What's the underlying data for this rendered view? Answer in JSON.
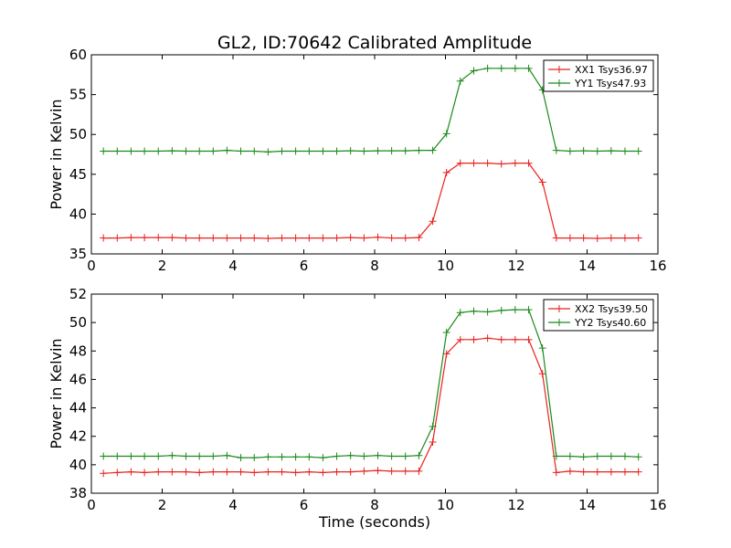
{
  "title": "GL2, ID:70642 Calibrated Amplitude",
  "xlabel": "Time (seconds)",
  "chart_data": [
    {
      "type": "line",
      "title": "GL2, ID:70642 Calibrated Amplitude",
      "xlabel": "",
      "ylabel": "Power in Kelvin",
      "xlim": [
        0,
        16
      ],
      "ylim": [
        35,
        60
      ],
      "xticks": [
        0,
        2,
        4,
        6,
        8,
        10,
        12,
        14,
        16
      ],
      "yticks": [
        35,
        40,
        45,
        50,
        55,
        60
      ],
      "grid": false,
      "legend_position": "top-right",
      "x": [
        0.34,
        0.73,
        1.12,
        1.5,
        1.89,
        2.28,
        2.67,
        3.05,
        3.44,
        3.83,
        4.22,
        4.6,
        4.99,
        5.38,
        5.77,
        6.15,
        6.54,
        6.93,
        7.32,
        7.7,
        8.09,
        8.48,
        8.87,
        9.25,
        9.64,
        10.03,
        10.42,
        10.8,
        11.19,
        11.58,
        11.97,
        12.35,
        12.74,
        13.13,
        13.52,
        13.9,
        14.29,
        14.68,
        15.07,
        15.45
      ],
      "series": [
        {
          "name": "XX1 Tsys36.97",
          "color": "#e8211d",
          "values": [
            37.0,
            37.0,
            37.05,
            37.05,
            37.05,
            37.05,
            37.0,
            37.0,
            37.0,
            37.0,
            37.0,
            37.0,
            36.95,
            37.0,
            37.0,
            37.0,
            37.0,
            37.0,
            37.05,
            37.0,
            37.1,
            37.0,
            37.0,
            37.05,
            39.1,
            45.2,
            46.4,
            46.4,
            46.4,
            46.3,
            46.4,
            46.4,
            44.0,
            37.0,
            37.0,
            37.0,
            36.95,
            37.0,
            37.0,
            37.0
          ]
        },
        {
          "name": "YY1 Tsys47.93",
          "color": "#1a8a1a",
          "values": [
            47.9,
            47.9,
            47.9,
            47.9,
            47.9,
            47.95,
            47.9,
            47.9,
            47.9,
            48.0,
            47.9,
            47.9,
            47.8,
            47.9,
            47.9,
            47.9,
            47.9,
            47.9,
            47.95,
            47.9,
            47.95,
            47.95,
            47.95,
            48.0,
            48.0,
            50.1,
            56.7,
            58.0,
            58.3,
            58.3,
            58.3,
            58.3,
            55.6,
            48.0,
            47.9,
            47.95,
            47.9,
            47.95,
            47.9,
            47.9
          ]
        }
      ]
    },
    {
      "type": "line",
      "title": "",
      "xlabel": "Time (seconds)",
      "ylabel": "Power in Kelvin",
      "xlim": [
        0,
        16
      ],
      "ylim": [
        38,
        52
      ],
      "xticks": [
        0,
        2,
        4,
        6,
        8,
        10,
        12,
        14,
        16
      ],
      "yticks": [
        38,
        40,
        42,
        44,
        46,
        48,
        50,
        52
      ],
      "grid": false,
      "legend_position": "top-right",
      "x": [
        0.34,
        0.73,
        1.12,
        1.5,
        1.89,
        2.28,
        2.67,
        3.05,
        3.44,
        3.83,
        4.22,
        4.6,
        4.99,
        5.38,
        5.77,
        6.15,
        6.54,
        6.93,
        7.32,
        7.7,
        8.09,
        8.48,
        8.87,
        9.25,
        9.64,
        10.03,
        10.42,
        10.8,
        11.19,
        11.58,
        11.97,
        12.35,
        12.74,
        13.13,
        13.52,
        13.9,
        14.29,
        14.68,
        15.07,
        15.45
      ],
      "series": [
        {
          "name": "XX2 Tsys39.50",
          "color": "#e8211d",
          "values": [
            39.4,
            39.45,
            39.5,
            39.45,
            39.5,
            39.5,
            39.5,
            39.45,
            39.5,
            39.5,
            39.5,
            39.45,
            39.5,
            39.5,
            39.45,
            39.5,
            39.45,
            39.5,
            39.5,
            39.55,
            39.6,
            39.55,
            39.55,
            39.55,
            41.6,
            47.8,
            48.8,
            48.8,
            48.9,
            48.8,
            48.8,
            48.8,
            46.4,
            39.45,
            39.55,
            39.5,
            39.5,
            39.5,
            39.5,
            39.5
          ]
        },
        {
          "name": "YY2 Tsys40.60",
          "color": "#1a8a1a",
          "values": [
            40.6,
            40.6,
            40.6,
            40.6,
            40.6,
            40.65,
            40.6,
            40.6,
            40.6,
            40.65,
            40.5,
            40.5,
            40.55,
            40.55,
            40.55,
            40.55,
            40.5,
            40.6,
            40.65,
            40.6,
            40.65,
            40.6,
            40.6,
            40.65,
            42.7,
            49.3,
            50.7,
            50.8,
            50.75,
            50.85,
            50.9,
            50.9,
            48.2,
            40.6,
            40.6,
            40.55,
            40.6,
            40.6,
            40.6,
            40.55
          ]
        }
      ]
    }
  ]
}
